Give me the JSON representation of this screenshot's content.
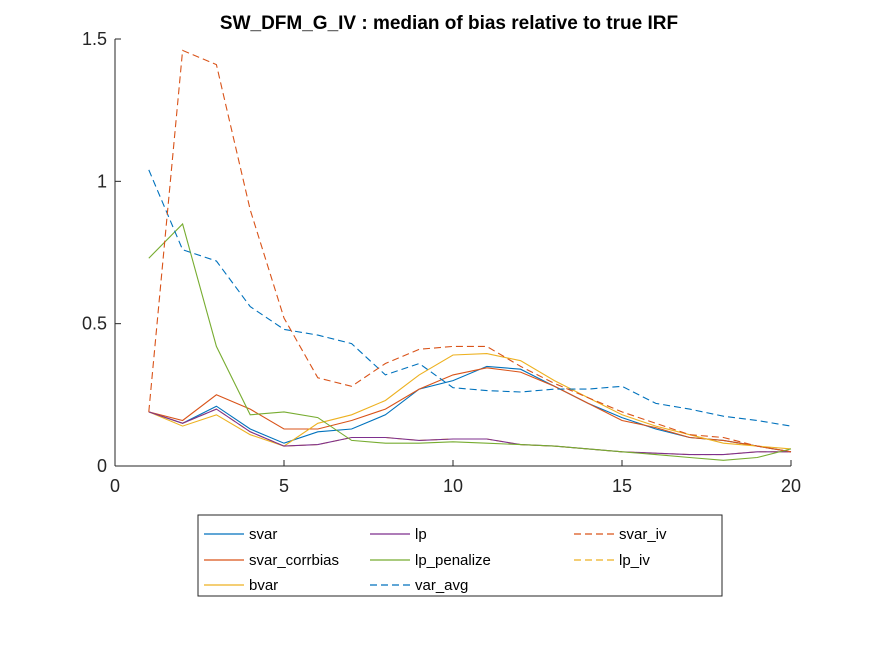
{
  "chart_data": {
    "type": "line",
    "title": "SW_DFM_G_IV : median of bias relative to true IRF",
    "xlabel": "",
    "ylabel": "",
    "xlim": [
      0,
      20
    ],
    "ylim": [
      0,
      1.5
    ],
    "xticks": [
      0,
      5,
      10,
      15,
      20
    ],
    "yticks": [
      0,
      0.5,
      1,
      1.5
    ],
    "x": [
      1,
      2,
      3,
      4,
      5,
      6,
      7,
      8,
      9,
      10,
      11,
      12,
      13,
      14,
      15,
      16,
      17,
      18,
      19,
      20
    ],
    "grid": false,
    "legend_position": "bottom-outside",
    "legend_columns": 3,
    "series": [
      {
        "name": "svar",
        "color": "#0072BD",
        "dash": "solid",
        "values": [
          0.19,
          0.15,
          0.21,
          0.13,
          0.08,
          0.12,
          0.13,
          0.18,
          0.27,
          0.3,
          0.35,
          0.34,
          0.28,
          0.22,
          0.17,
          0.13,
          0.1,
          0.09,
          0.07,
          0.05
        ]
      },
      {
        "name": "svar_corrbias",
        "color": "#D95319",
        "dash": "solid",
        "values": [
          0.19,
          0.16,
          0.25,
          0.2,
          0.13,
          0.13,
          0.16,
          0.2,
          0.27,
          0.32,
          0.345,
          0.33,
          0.28,
          0.22,
          0.16,
          0.135,
          0.1,
          0.09,
          0.07,
          0.05
        ]
      },
      {
        "name": "bvar",
        "color": "#EDB120",
        "dash": "solid",
        "values": [
          0.19,
          0.14,
          0.18,
          0.11,
          0.07,
          0.15,
          0.18,
          0.23,
          0.32,
          0.39,
          0.395,
          0.37,
          0.3,
          0.24,
          0.18,
          0.14,
          0.11,
          0.08,
          0.07,
          0.06
        ]
      },
      {
        "name": "lp",
        "color": "#7E2F8E",
        "dash": "solid",
        "values": [
          0.19,
          0.15,
          0.2,
          0.12,
          0.07,
          0.075,
          0.1,
          0.1,
          0.09,
          0.095,
          0.095,
          0.075,
          0.07,
          0.06,
          0.05,
          0.045,
          0.04,
          0.04,
          0.05,
          0.05
        ]
      },
      {
        "name": "lp_penalize",
        "color": "#77AC30",
        "dash": "solid",
        "values": [
          0.73,
          0.85,
          0.42,
          0.18,
          0.19,
          0.17,
          0.09,
          0.08,
          0.08,
          0.085,
          0.08,
          0.075,
          0.07,
          0.06,
          0.05,
          0.04,
          0.03,
          0.02,
          0.03,
          0.06
        ]
      },
      {
        "name": "var_avg",
        "color": "#0072BD",
        "dash": "dashed",
        "values": [
          1.04,
          0.76,
          0.72,
          0.56,
          0.48,
          0.46,
          0.43,
          0.32,
          0.36,
          0.275,
          0.265,
          0.26,
          0.27,
          0.27,
          0.28,
          0.22,
          0.2,
          0.175,
          0.16,
          0.14
        ]
      },
      {
        "name": "svar_iv",
        "color": "#D95319",
        "dash": "dashed",
        "values": [
          0.19,
          1.46,
          1.41,
          0.9,
          0.52,
          0.31,
          0.28,
          0.36,
          0.41,
          0.42,
          0.42,
          0.35,
          0.29,
          0.24,
          0.19,
          0.15,
          0.11,
          0.1,
          0.07,
          0.05
        ]
      },
      {
        "name": "lp_iv",
        "color": "#EDB120",
        "dash": "dashed",
        "values": [
          0.19,
          0.15,
          0.2,
          0.12,
          0.07,
          0.075,
          0.1,
          0.1,
          0.09,
          0.095,
          0.095,
          0.075,
          0.07,
          0.06,
          0.05,
          0.045,
          0.04,
          0.04,
          0.05,
          0.05
        ]
      }
    ],
    "legend_order": [
      "svar",
      "lp",
      "svar_iv",
      "svar_corrbias",
      "lp_penalize",
      "lp_iv",
      "bvar",
      "var_avg"
    ]
  }
}
